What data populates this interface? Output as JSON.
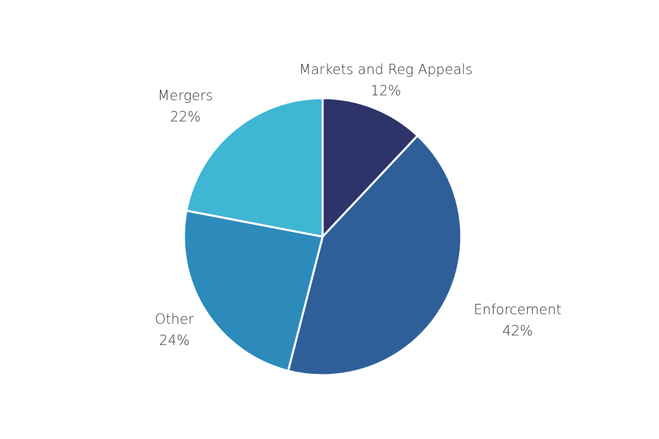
{
  "chart_data": {
    "type": "pie",
    "title": "",
    "slices": [
      {
        "label": "Markets and Reg Appeals",
        "value": 12,
        "value_label": "12%",
        "color": "#2e3369"
      },
      {
        "label": "Enforcement",
        "value": 42,
        "value_label": "42%",
        "color": "#2e5f98"
      },
      {
        "label": "Other",
        "value": 24,
        "value_label": "24%",
        "color": "#2c8bba"
      },
      {
        "label": "Mergers",
        "value": 22,
        "value_label": "22%",
        "color": "#3fb6d4"
      }
    ],
    "start_angle": "12 o'clock",
    "direction": "clockwise",
    "legend": "none"
  }
}
